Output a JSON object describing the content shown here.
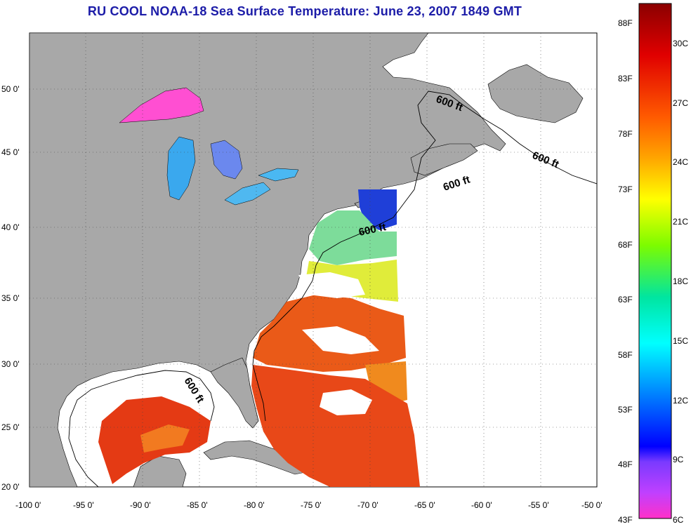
{
  "title": "RU COOL  NOAA-18  Sea Surface Temperature:  June 23, 2007 1849 GMT",
  "lat_ticks": [
    "50 0'",
    "45 0'",
    "40 0'",
    "35 0'",
    "30 0'",
    "25 0'",
    "20 0'"
  ],
  "lon_ticks": [
    "-100 0'",
    "-95 0'",
    "-90 0'",
    "-85 0'",
    "-80 0'",
    "-75 0'",
    "-70 0'",
    "-65 0'",
    "-60 0'",
    "-55 0'",
    "-50 0'"
  ],
  "contour_labels": [
    "600 ft",
    "600 ft",
    "600 ft",
    "600 ft"
  ],
  "colorbar": {
    "fahrenheit": [
      "88F",
      "83F",
      "78F",
      "73F",
      "68F",
      "63F",
      "58F",
      "53F",
      "48F",
      "43F"
    ],
    "celsius": [
      "30C",
      "27C",
      "24C",
      "21C",
      "18C",
      "15C",
      "12C",
      "9C",
      "6C"
    ]
  },
  "colors": {
    "land": "#a8a8a8",
    "title": "#1c1ca8",
    "warm": "#e83a12",
    "cool": "#1f3fd8"
  }
}
